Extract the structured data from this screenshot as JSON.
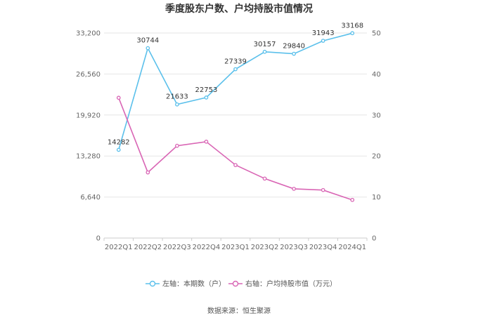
{
  "chart_data": {
    "type": "line",
    "title": "季度股东户数、户均持股市值情况",
    "categories": [
      "2022Q1",
      "2022Q2",
      "2022Q3",
      "2022Q4",
      "2023Q1",
      "2023Q2",
      "2023Q3",
      "2023Q4",
      "2024Q1"
    ],
    "left_axis": {
      "ticks": [
        "0",
        "6,640",
        "13,280",
        "19,920",
        "26,560",
        "33,200"
      ],
      "ylim": [
        0,
        33200
      ]
    },
    "right_axis": {
      "ticks": [
        "0",
        "10",
        "20",
        "30",
        "40",
        "50"
      ],
      "ylim": [
        0,
        50
      ]
    },
    "grid": true,
    "legend_position": "bottom",
    "series": [
      {
        "name": "左轴：本期数（户）",
        "axis": "left",
        "color": "#5bc0eb",
        "values": [
          14282,
          30744,
          21633,
          22753,
          27339,
          30157,
          29840,
          31943,
          33168
        ],
        "labels": [
          "14282",
          "30744",
          "21633",
          "22753",
          "27339",
          "30157",
          "29840",
          "31943",
          "33168"
        ]
      },
      {
        "name": "右轴：户均持股市值（万元）",
        "axis": "right",
        "color": "#d966b5",
        "values": [
          34.2,
          16.0,
          22.5,
          23.5,
          17.8,
          14.5,
          12.0,
          11.7,
          9.3
        ]
      }
    ],
    "source": "数据来源：恒生聚源"
  }
}
